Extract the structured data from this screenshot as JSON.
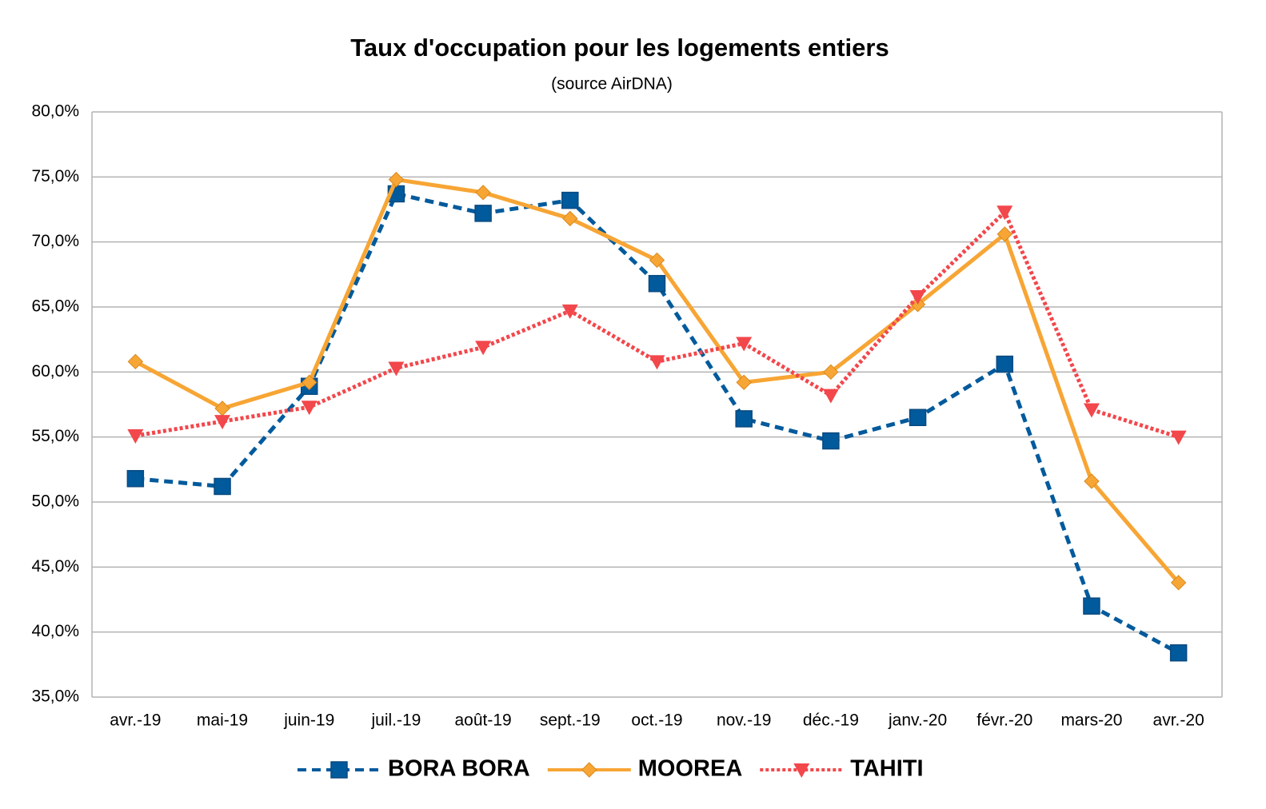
{
  "chart_data": {
    "type": "line",
    "title": "Taux d'occupation pour les logements entiers",
    "subtitle": "(source AirDNA)",
    "categories": [
      "avr.-19",
      "mai-19",
      "juin-19",
      "juil.-19",
      "août-19",
      "sept.-19",
      "oct.-19",
      "nov.-19",
      "déc.-19",
      "janv.-20",
      "févr.-20",
      "mars-20",
      "avr.-20"
    ],
    "series": [
      {
        "name": "BORA BORA",
        "color": "#005a9c",
        "style": "dashed",
        "marker": "square",
        "values": [
          51.8,
          51.2,
          58.9,
          73.7,
          72.2,
          73.2,
          66.8,
          56.4,
          54.7,
          56.5,
          60.6,
          42.0,
          38.4
        ]
      },
      {
        "name": "MOOREA",
        "color": "#f7a534",
        "style": "solid",
        "marker": "diamond",
        "values": [
          60.8,
          57.2,
          59.2,
          74.8,
          73.8,
          71.8,
          68.6,
          59.2,
          60.0,
          65.2,
          70.6,
          51.6,
          43.8
        ]
      },
      {
        "name": "TAHITI",
        "color": "#f2474b",
        "style": "dotted",
        "marker": "triangle-down",
        "values": [
          55.1,
          56.2,
          57.3,
          60.3,
          61.9,
          64.7,
          60.8,
          62.2,
          58.2,
          65.8,
          72.3,
          57.1,
          55.0
        ]
      }
    ],
    "ylim": [
      35,
      80
    ],
    "yticks": [
      {
        "value": 35,
        "label": "35,0%"
      },
      {
        "value": 40,
        "label": "40,0%"
      },
      {
        "value": 45,
        "label": "45,0%"
      },
      {
        "value": 50,
        "label": "50,0%"
      },
      {
        "value": 55,
        "label": "55,0%"
      },
      {
        "value": 60,
        "label": "60,0%"
      },
      {
        "value": 65,
        "label": "65,0%"
      },
      {
        "value": 70,
        "label": "70,0%"
      },
      {
        "value": 75,
        "label": "75,0%"
      },
      {
        "value": 80,
        "label": "80,0%"
      }
    ],
    "grid": true,
    "legend": "bottom"
  }
}
